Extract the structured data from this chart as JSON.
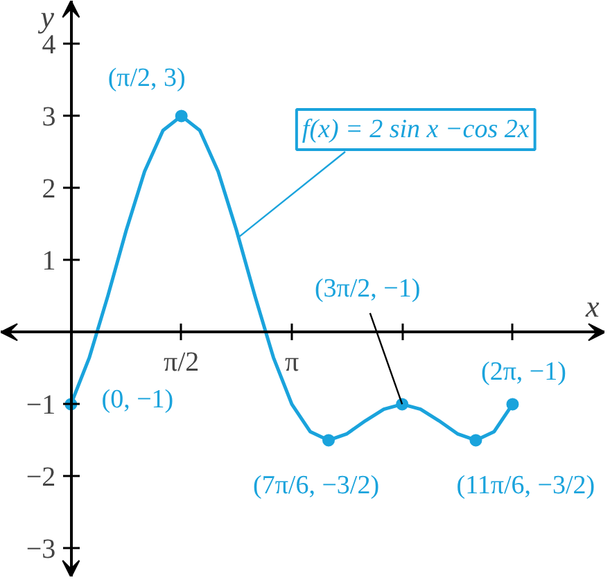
{
  "chart_data": {
    "type": "line",
    "xlabel": "x",
    "ylabel": "y",
    "xlim": [
      -1.0,
      7.6
    ],
    "ylim": [
      -3.4,
      4.6
    ],
    "xticks": [
      {
        "value": 1.571,
        "label": "π/2"
      },
      {
        "value": 3.142,
        "label": "π"
      },
      {
        "value": 4.712,
        "label": null
      },
      {
        "value": 6.283,
        "label": null
      }
    ],
    "yticks": [
      -3,
      -2,
      -1,
      1,
      2,
      3,
      4
    ],
    "grid": false,
    "series": [
      {
        "color": "#1aa3dc",
        "x": [
          0,
          0.262,
          0.524,
          0.785,
          1.047,
          1.309,
          1.571,
          1.833,
          2.094,
          2.356,
          2.618,
          2.88,
          3.142,
          3.403,
          3.665,
          3.927,
          4.189,
          4.451,
          4.712,
          4.974,
          5.236,
          5.498,
          5.76,
          6.021,
          6.283
        ],
        "values": [
          -1,
          -0.35,
          0.5,
          1.41,
          2.23,
          2.8,
          3,
          2.8,
          2.23,
          1.41,
          0.5,
          -0.35,
          -1,
          -1.38,
          -1.5,
          -1.41,
          -1.23,
          -1.07,
          -1,
          -1.07,
          -1.23,
          -1.41,
          -1.5,
          -1.38,
          -1
        ]
      },
      {
        "type": "scatter",
        "marker": "circle",
        "color": "#1aa3dc",
        "x": [
          0,
          1.571,
          3.665,
          4.712,
          5.76,
          6.283
        ],
        "values": [
          -1,
          3,
          -1.5,
          -1,
          -1.5,
          -1
        ]
      }
    ],
    "annotations": [
      {
        "text": "(π/2, 3)",
        "x": 1.571,
        "y": 3
      },
      {
        "text": "(0, −1)",
        "x": 0,
        "y": -1
      },
      {
        "text": "(7π/6, −3/2)",
        "x": 3.665,
        "y": -1.5
      },
      {
        "text": "(3π/2, −1)",
        "x": 4.712,
        "y": -1
      },
      {
        "text": "(11π/6, −3/2)",
        "x": 5.76,
        "y": -1.5
      },
      {
        "text": "(2π, −1)",
        "x": 6.283,
        "y": -1
      },
      {
        "text": "f(x) = 2 sin x −cos 2x",
        "x": 2.4,
        "y": 1.33
      }
    ]
  }
}
